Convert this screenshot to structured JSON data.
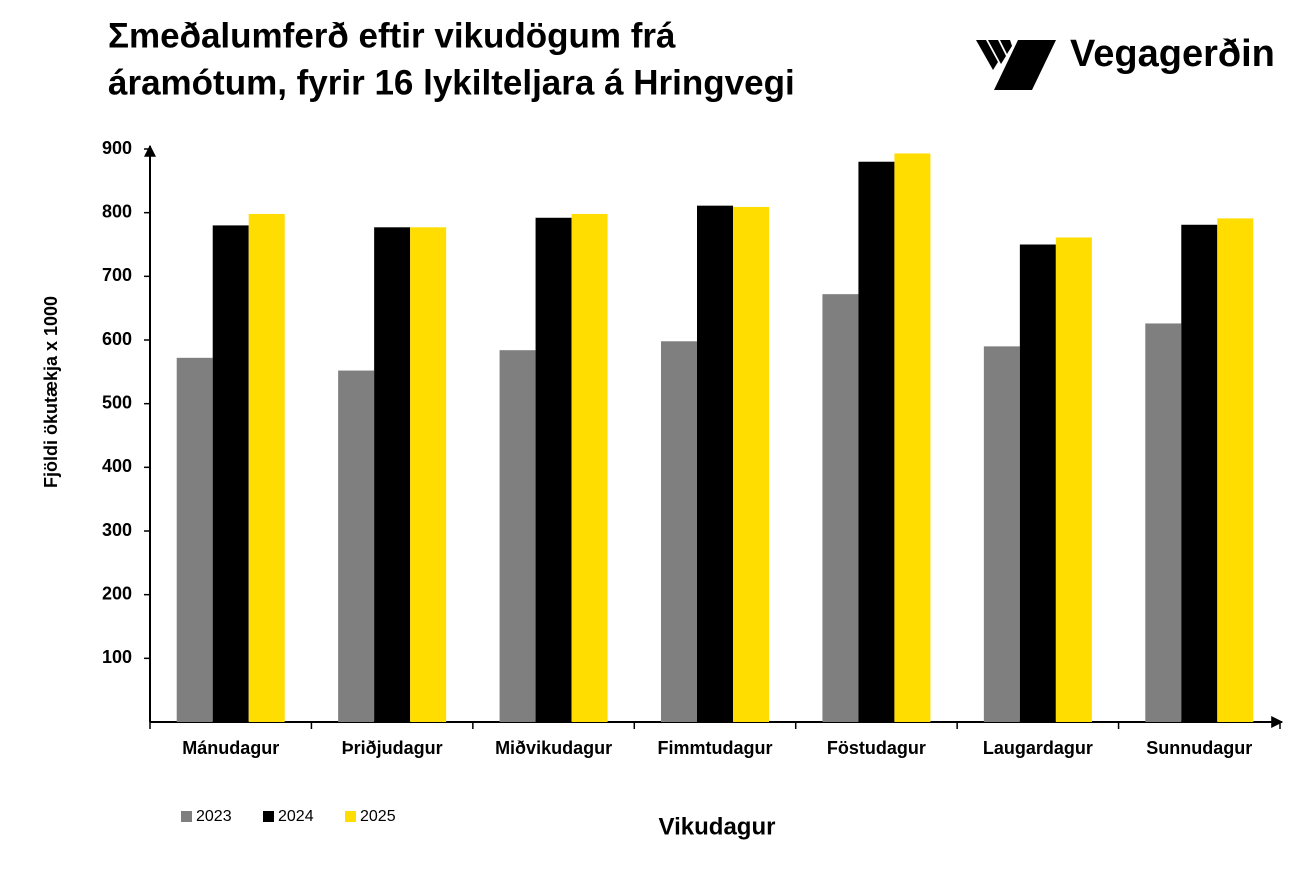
{
  "chart_data": {
    "type": "bar",
    "title": [
      "Σmeðalumferð eftir vikudögum frá",
      "áramótum, fyrir 16 lykilteljara á Hringvegi"
    ],
    "logo": "Vegagerðin",
    "y_label": "Fjöldi ökutækja x 1000",
    "x_label": "Vikudagur",
    "categories": [
      "Mánudagur",
      "Þriðjudagur",
      "Miðvikudagur",
      "Fimmtudagur",
      "Föstudagur",
      "Laugardagur",
      "Sunnudagur"
    ],
    "series": [
      {
        "name": "2023",
        "color": "#7f7f7f",
        "values": [
          572,
          552,
          584,
          598,
          672,
          590,
          626
        ]
      },
      {
        "name": "2024",
        "color": "#000000",
        "values": [
          780,
          777,
          792,
          811,
          880,
          750,
          781
        ]
      },
      {
        "name": "2025",
        "color": "#ffdd00",
        "values": [
          798,
          777,
          798,
          809,
          893,
          761,
          791
        ]
      }
    ],
    "ylim": [
      0,
      900
    ],
    "yticks": [
      100,
      200,
      300,
      400,
      500,
      600,
      700,
      800,
      900
    ]
  }
}
